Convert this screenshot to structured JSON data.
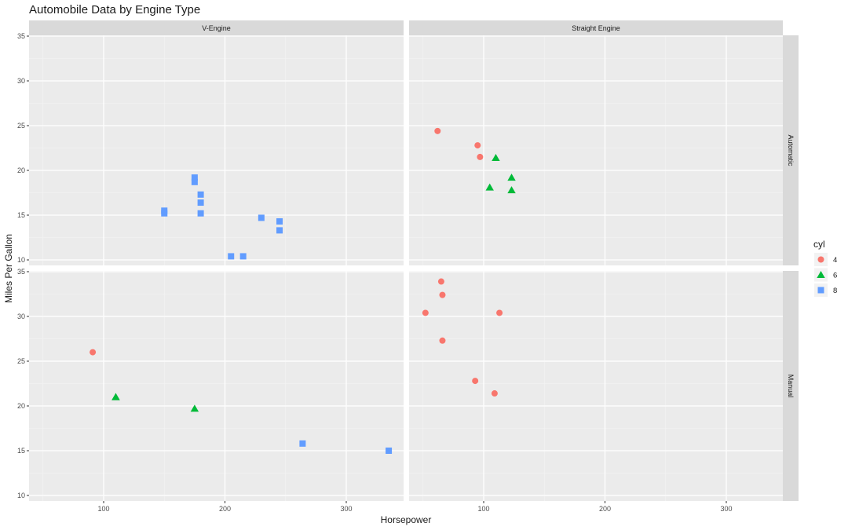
{
  "chart_data": {
    "type": "scatter",
    "title": "Automobile Data by Engine Type",
    "xlabel": "Horsepower",
    "ylabel": "Miles Per Gallon",
    "xlim": [
      40,
      350
    ],
    "ylim": [
      9.5,
      35
    ],
    "x_ticks": [
      100,
      200,
      300
    ],
    "y_ticks": [
      10,
      15,
      20,
      25,
      30,
      35
    ],
    "grid": true,
    "facet_cols": [
      "V-Engine",
      "Straight Engine"
    ],
    "facet_rows": [
      "Automatic",
      "Manual"
    ],
    "legend": {
      "title": "cyl",
      "position": "right",
      "entries": [
        {
          "label": "4",
          "shape": "circle",
          "color": "#F8766D"
        },
        {
          "label": "6",
          "shape": "triangle",
          "color": "#00BA38"
        },
        {
          "label": "8",
          "shape": "square",
          "color": "#619CFF"
        }
      ]
    },
    "panels": [
      {
        "col": "V-Engine",
        "row": "Automatic",
        "points": [
          {
            "hp": 175,
            "mpg": 18.7,
            "cyl": "8"
          },
          {
            "hp": 245,
            "mpg": 14.3,
            "cyl": "8"
          },
          {
            "hp": 180,
            "mpg": 16.4,
            "cyl": "8"
          },
          {
            "hp": 180,
            "mpg": 17.3,
            "cyl": "8"
          },
          {
            "hp": 180,
            "mpg": 15.2,
            "cyl": "8"
          },
          {
            "hp": 205,
            "mpg": 10.4,
            "cyl": "8"
          },
          {
            "hp": 215,
            "mpg": 10.4,
            "cyl": "8"
          },
          {
            "hp": 230,
            "mpg": 14.7,
            "cyl": "8"
          },
          {
            "hp": 150,
            "mpg": 15.5,
            "cyl": "8"
          },
          {
            "hp": 150,
            "mpg": 15.2,
            "cyl": "8"
          },
          {
            "hp": 245,
            "mpg": 13.3,
            "cyl": "8"
          },
          {
            "hp": 175,
            "mpg": 19.2,
            "cyl": "8"
          }
        ]
      },
      {
        "col": "Straight Engine",
        "row": "Automatic",
        "points": [
          {
            "hp": 110,
            "mpg": 21.4,
            "cyl": "6"
          },
          {
            "hp": 105,
            "mpg": 18.1,
            "cyl": "6"
          },
          {
            "hp": 62,
            "mpg": 24.4,
            "cyl": "4"
          },
          {
            "hp": 95,
            "mpg": 22.8,
            "cyl": "4"
          },
          {
            "hp": 123,
            "mpg": 19.2,
            "cyl": "6"
          },
          {
            "hp": 123,
            "mpg": 17.8,
            "cyl": "6"
          },
          {
            "hp": 97,
            "mpg": 21.5,
            "cyl": "4"
          }
        ]
      },
      {
        "col": "V-Engine",
        "row": "Manual",
        "points": [
          {
            "hp": 110,
            "mpg": 21.0,
            "cyl": "6"
          },
          {
            "hp": 110,
            "mpg": 21.0,
            "cyl": "6"
          },
          {
            "hp": 91,
            "mpg": 26.0,
            "cyl": "4"
          },
          {
            "hp": 264,
            "mpg": 15.8,
            "cyl": "8"
          },
          {
            "hp": 175,
            "mpg": 19.7,
            "cyl": "6"
          },
          {
            "hp": 335,
            "mpg": 15.0,
            "cyl": "8"
          }
        ]
      },
      {
        "col": "Straight Engine",
        "row": "Manual",
        "points": [
          {
            "hp": 93,
            "mpg": 22.8,
            "cyl": "4"
          },
          {
            "hp": 66,
            "mpg": 32.4,
            "cyl": "4"
          },
          {
            "hp": 52,
            "mpg": 30.4,
            "cyl": "4"
          },
          {
            "hp": 65,
            "mpg": 33.9,
            "cyl": "4"
          },
          {
            "hp": 66,
            "mpg": 27.3,
            "cyl": "4"
          },
          {
            "hp": 113,
            "mpg": 30.4,
            "cyl": "4"
          },
          {
            "hp": 109,
            "mpg": 21.4,
            "cyl": "4"
          }
        ]
      }
    ]
  },
  "colors": {
    "panel_bg": "#EBEBEB",
    "strip_bg": "#D9D9D9",
    "grid_major": "#FFFFFF",
    "grid_minor": "#F2F2F2"
  }
}
